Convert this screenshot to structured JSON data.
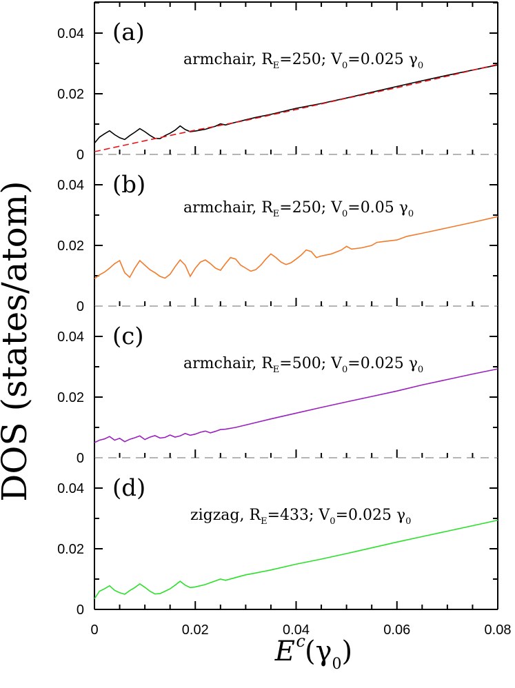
{
  "figure": {
    "ylabel": "DOS (states/atom)",
    "xlabel_main": "E",
    "xlabel_sup": "c",
    "xlabel_open": " (γ",
    "xlabel_sub": "0",
    "xlabel_close": ")"
  },
  "chart_data": [
    {
      "type": "line",
      "panel_label": "(a)",
      "annotation": {
        "prefix": "armchair, R",
        "sub1": "E",
        "mid": "=250; V",
        "sub2": "0",
        "value": "=0.025 γ",
        "sub3": "0"
      },
      "xlim": [
        0,
        0.08
      ],
      "ylim": [
        0,
        0.05
      ],
      "yticks": [
        "0",
        "0.02",
        "0.04"
      ],
      "grid": false,
      "colors": {
        "series": "#000000",
        "reference": "#e8141b",
        "zero_line": "#888888"
      },
      "series": [
        {
          "x": [
            0,
            0.001,
            0.002,
            0.003,
            0.004,
            0.005,
            0.006,
            0.007,
            0.008,
            0.009,
            0.01,
            0.011,
            0.012,
            0.013,
            0.014,
            0.015,
            0.016,
            0.017,
            0.018,
            0.019,
            0.02,
            0.022,
            0.024,
            0.025,
            0.026,
            0.028,
            0.03,
            0.032,
            0.035,
            0.04,
            0.045,
            0.05,
            0.055,
            0.06,
            0.065,
            0.07,
            0.075,
            0.08
          ],
          "y": [
            0.0037,
            0.0057,
            0.0068,
            0.0078,
            0.0065,
            0.0055,
            0.0049,
            0.0062,
            0.0073,
            0.0085,
            0.0075,
            0.0063,
            0.0053,
            0.0052,
            0.0062,
            0.007,
            0.008,
            0.0094,
            0.0082,
            0.0075,
            0.0077,
            0.0083,
            0.0093,
            0.0101,
            0.0097,
            0.0106,
            0.0114,
            0.0122,
            0.0132,
            0.0152,
            0.0168,
            0.0186,
            0.0205,
            0.0224,
            0.0243,
            0.0261,
            0.0278,
            0.0295
          ]
        },
        {
          "x": [
            0,
            0.01,
            0.02,
            0.03,
            0.04,
            0.05,
            0.06,
            0.07,
            0.08
          ],
          "y": [
            0.0009,
            0.0045,
            0.008,
            0.0112,
            0.0148,
            0.0185,
            0.022,
            0.0258,
            0.0297
          ]
        }
      ]
    },
    {
      "type": "line",
      "panel_label": "(b)",
      "annotation": {
        "prefix": "armchair,  R",
        "sub1": "E",
        "mid": "=250; V",
        "sub2": "0",
        "value": "=0.05 γ",
        "sub3": "0"
      },
      "xlim": [
        0,
        0.08
      ],
      "ylim": [
        0,
        0.05
      ],
      "yticks": [
        "0",
        "0.02",
        "0.04"
      ],
      "grid": false,
      "colors": {
        "series": "#f27a2a"
      },
      "series": [
        {
          "x": [
            0,
            0.001,
            0.002,
            0.003,
            0.004,
            0.005,
            0.006,
            0.007,
            0.008,
            0.009,
            0.01,
            0.011,
            0.012,
            0.013,
            0.014,
            0.015,
            0.016,
            0.017,
            0.018,
            0.019,
            0.02,
            0.021,
            0.022,
            0.023,
            0.024,
            0.025,
            0.026,
            0.027,
            0.028,
            0.029,
            0.03,
            0.031,
            0.032,
            0.033,
            0.034,
            0.035,
            0.036,
            0.037,
            0.038,
            0.039,
            0.04,
            0.041,
            0.042,
            0.043,
            0.044,
            0.045,
            0.047,
            0.049,
            0.05,
            0.051,
            0.053,
            0.055,
            0.056,
            0.057,
            0.06,
            0.062,
            0.065,
            0.07,
            0.075,
            0.08
          ],
          "y": [
            0.009,
            0.0103,
            0.0112,
            0.0125,
            0.014,
            0.015,
            0.011,
            0.0095,
            0.0125,
            0.015,
            0.0135,
            0.012,
            0.011,
            0.0098,
            0.0092,
            0.0105,
            0.013,
            0.0152,
            0.0135,
            0.0098,
            0.0125,
            0.0145,
            0.0152,
            0.014,
            0.0125,
            0.0118,
            0.014,
            0.016,
            0.0155,
            0.0135,
            0.0125,
            0.0115,
            0.012,
            0.0135,
            0.0155,
            0.0172,
            0.016,
            0.0145,
            0.0137,
            0.0143,
            0.0155,
            0.0168,
            0.0185,
            0.018,
            0.016,
            0.0165,
            0.0172,
            0.0185,
            0.0197,
            0.0188,
            0.0192,
            0.02,
            0.021,
            0.0212,
            0.0218,
            0.023,
            0.024,
            0.0258,
            0.0276,
            0.0295
          ]
        }
      ]
    },
    {
      "type": "line",
      "panel_label": "(c)",
      "annotation": {
        "prefix": "armchair, R",
        "sub1": "E",
        "mid": "=500; V",
        "sub2": "0",
        "value": "=0.025 γ",
        "sub3": "0"
      },
      "xlim": [
        0,
        0.08
      ],
      "ylim": [
        0,
        0.05
      ],
      "yticks": [
        "0",
        "0.02",
        "0.04"
      ],
      "grid": false,
      "colors": {
        "series": "#9a1fbf"
      },
      "series": [
        {
          "x": [
            0,
            0.001,
            0.002,
            0.003,
            0.004,
            0.005,
            0.006,
            0.007,
            0.008,
            0.009,
            0.01,
            0.011,
            0.012,
            0.013,
            0.014,
            0.015,
            0.016,
            0.017,
            0.018,
            0.019,
            0.02,
            0.021,
            0.022,
            0.023,
            0.024,
            0.025,
            0.026,
            0.028,
            0.03,
            0.035,
            0.04,
            0.045,
            0.05,
            0.055,
            0.06,
            0.065,
            0.07,
            0.075,
            0.08
          ],
          "y": [
            0.005,
            0.0058,
            0.0062,
            0.007,
            0.0058,
            0.0064,
            0.0053,
            0.0061,
            0.0066,
            0.0072,
            0.006,
            0.0068,
            0.0073,
            0.0065,
            0.0067,
            0.0075,
            0.0068,
            0.0072,
            0.008,
            0.0074,
            0.0078,
            0.0084,
            0.0088,
            0.0082,
            0.0087,
            0.0093,
            0.0094,
            0.01,
            0.0108,
            0.0128,
            0.0147,
            0.0166,
            0.0184,
            0.0202,
            0.022,
            0.024,
            0.0258,
            0.0276,
            0.0293
          ]
        }
      ]
    },
    {
      "type": "line",
      "panel_label": "(d)",
      "annotation": {
        "prefix": "zigzag, R",
        "sub1": "E",
        "mid": "=433; V",
        "sub2": "0",
        "value": "=0.025 γ",
        "sub3": "0"
      },
      "xlim": [
        0,
        0.08
      ],
      "ylim": [
        0,
        0.05
      ],
      "yticks": [
        "0",
        "0.02",
        "0.04"
      ],
      "xticks": [
        "0",
        "0.02",
        "0.04",
        "0.06",
        "0.08"
      ],
      "grid": false,
      "colors": {
        "series": "#2ae02a"
      },
      "series": [
        {
          "x": [
            0,
            0.001,
            0.002,
            0.003,
            0.004,
            0.005,
            0.006,
            0.007,
            0.008,
            0.009,
            0.01,
            0.011,
            0.012,
            0.013,
            0.014,
            0.015,
            0.016,
            0.017,
            0.018,
            0.019,
            0.02,
            0.022,
            0.024,
            0.025,
            0.026,
            0.028,
            0.03,
            0.032,
            0.035,
            0.04,
            0.045,
            0.05,
            0.055,
            0.06,
            0.065,
            0.07,
            0.075,
            0.08
          ],
          "y": [
            0.0035,
            0.006,
            0.0068,
            0.0078,
            0.0063,
            0.0055,
            0.005,
            0.0062,
            0.0072,
            0.0084,
            0.0073,
            0.006,
            0.0051,
            0.0052,
            0.006,
            0.0068,
            0.008,
            0.0093,
            0.008,
            0.0072,
            0.0074,
            0.0082,
            0.0094,
            0.01,
            0.0096,
            0.0105,
            0.0114,
            0.012,
            0.013,
            0.0149,
            0.0166,
            0.0184,
            0.0203,
            0.0222,
            0.024,
            0.0258,
            0.0276,
            0.0294
          ]
        }
      ]
    }
  ]
}
